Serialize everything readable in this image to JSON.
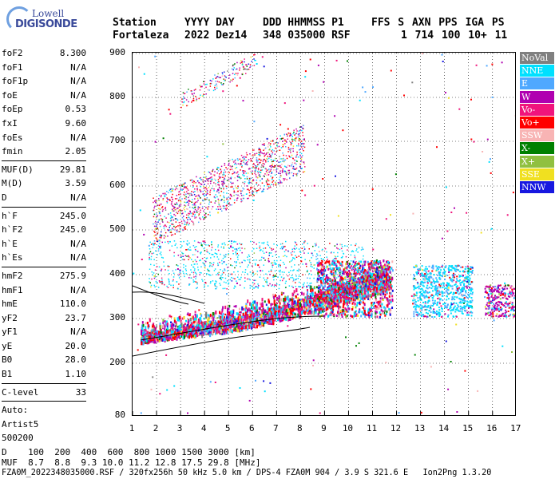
{
  "logo": {
    "line1": "Lowell",
    "line2": "DIGISONDE"
  },
  "header": {
    "row1": [
      "Station",
      "YYYY DAY",
      "DDD HHMMSS P1",
      "FFS S AXN PPS IGA PS"
    ],
    "row2": [
      "Fortaleza",
      "2022 Dez14",
      "348 035000 RSF",
      "1 714 100 10+ 11"
    ]
  },
  "params": [
    {
      "name": "foF2",
      "value": "8.300"
    },
    {
      "name": "foF1",
      "value": "N/A"
    },
    {
      "name": "foF1p",
      "value": "N/A"
    },
    {
      "name": "foE",
      "value": "N/A"
    },
    {
      "name": "foEp",
      "value": "0.53"
    },
    {
      "name": "fxI",
      "value": "9.60"
    },
    {
      "name": "foEs",
      "value": "N/A"
    },
    {
      "name": "fmin",
      "value": "2.05"
    },
    {
      "sep": true
    },
    {
      "name": "MUF(D)",
      "value": "29.81"
    },
    {
      "name": "M(D)",
      "value": "3.59"
    },
    {
      "name": "D",
      "value": "N/A"
    },
    {
      "sep": true
    },
    {
      "name": "h`F",
      "value": "245.0"
    },
    {
      "name": "h`F2",
      "value": "245.0"
    },
    {
      "name": "h`E",
      "value": "N/A"
    },
    {
      "name": "h`Es",
      "value": "N/A"
    },
    {
      "sep": true
    },
    {
      "name": "hmF2",
      "value": "275.9"
    },
    {
      "name": "hmF1",
      "value": "N/A"
    },
    {
      "name": "hmE",
      "value": "110.0"
    },
    {
      "name": "yF2",
      "value": "23.7"
    },
    {
      "name": "yF1",
      "value": "N/A"
    },
    {
      "name": "yE",
      "value": "20.0"
    },
    {
      "name": "B0",
      "value": "28.0"
    },
    {
      "name": "B1",
      "value": "1.10"
    },
    {
      "sep": true
    },
    {
      "name": "C-level",
      "value": "33"
    },
    {
      "sep": true
    },
    {
      "name": "Auto:",
      "value": ""
    },
    {
      "name": "Artist5",
      "value": ""
    },
    {
      "name": "500200",
      "value": ""
    }
  ],
  "plot": {
    "y_ticks": [
      "900",
      "800",
      "700",
      "600",
      "500",
      "400",
      "300",
      "200",
      "80"
    ],
    "x_ticks": [
      "1",
      "2",
      "3",
      "4",
      "5",
      "6",
      "7",
      "8",
      "9",
      "10",
      "11",
      "12",
      "13",
      "14",
      "15",
      "16",
      "17"
    ]
  },
  "legend": [
    {
      "label": "NoVal",
      "color": "#808080",
      "text_color": "#ffffff"
    },
    {
      "label": "NNE",
      "color": "#00e0ff",
      "text_color": "#ffffff"
    },
    {
      "label": "E",
      "color": "#4fa8ff",
      "text_color": "#ffffff"
    },
    {
      "label": "W",
      "color": "#b000b0",
      "text_color": "#ffffff"
    },
    {
      "label": "Vo-",
      "color": "#f0147c",
      "text_color": "#ffffff"
    },
    {
      "label": "Vo+",
      "color": "#ff0000",
      "text_color": "#ffffff"
    },
    {
      "label": "SSW",
      "color": "#f8b4b4",
      "text_color": "#ffffff"
    },
    {
      "label": "X-",
      "color": "#008000",
      "text_color": "#ffffff"
    },
    {
      "label": "X+",
      "color": "#90c040",
      "text_color": "#ffffff"
    },
    {
      "label": "SSE",
      "color": "#f0e020",
      "text_color": "#ffffff"
    },
    {
      "label": "NNW",
      "color": "#1818e0",
      "text_color": "#ffffff"
    }
  ],
  "bottom": {
    "d_row": "D    100  200  400  600  800 1000 1500 3000 [km]",
    "muf_row": "MUF  8.7  8.8  9.3 10.0 11.2 12.8 17.5 29.8 [MHz]",
    "info_row": "FZA0M_2022348035000.RSF / 320fx256h 50 kHz 5.0 km / DPS-4 FZA0M 904 / 3.9 S 321.6 E   Ion2Png 1.3.20"
  }
}
